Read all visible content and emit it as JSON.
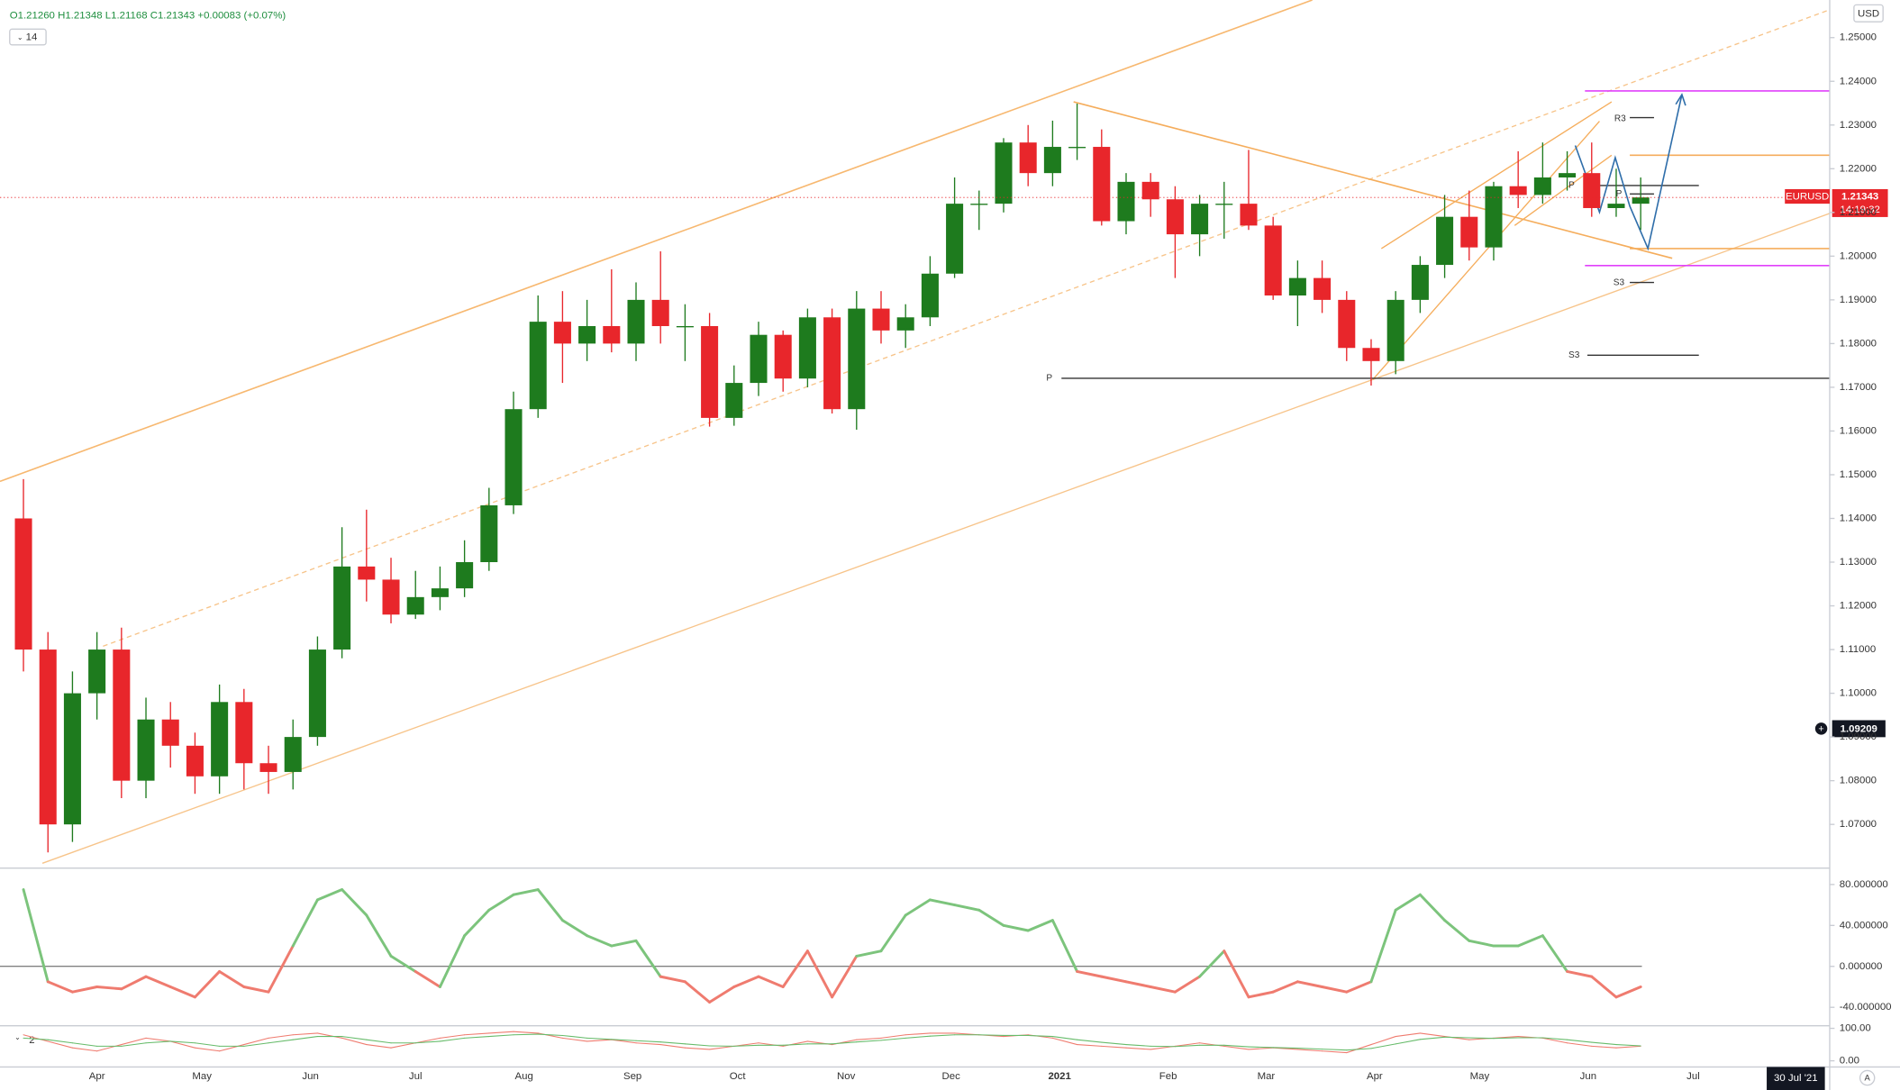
{
  "header": {
    "ohlc": "O1.21260 H1.21348 L1.21168 C1.21343 +0.00083 (+0.07%)",
    "interval": "14"
  },
  "ui": {
    "currency": "USD",
    "symbol": "EURUSD",
    "price_tag": "1.21343",
    "countdown": "14:19:32",
    "crosshair_price": "1.09209",
    "crosshair_date": "30 Jul '21",
    "pane_index": "2",
    "auto_scale": "A"
  },
  "chart_data": [
    {
      "type": "candlestick",
      "x": [
        -21,
        -14,
        -7,
        0,
        7,
        14,
        21,
        28,
        35,
        42,
        49,
        56,
        63,
        70,
        77,
        84,
        91,
        98,
        105,
        112,
        119,
        126,
        133,
        140,
        147,
        154,
        161,
        168,
        175,
        182,
        189,
        196,
        203,
        210,
        217,
        224,
        231,
        238,
        245,
        252,
        259,
        266,
        273,
        280,
        287,
        294,
        301,
        308,
        315,
        322,
        329,
        336,
        343,
        350,
        357,
        364,
        371,
        378,
        385,
        392,
        399,
        406,
        413,
        420,
        427,
        434,
        441
      ],
      "open": [
        1.14,
        1.11,
        1.07,
        1.1,
        1.11,
        1.08,
        1.094,
        1.088,
        1.081,
        1.098,
        1.084,
        1.082,
        1.09,
        1.11,
        1.129,
        1.126,
        1.118,
        1.122,
        1.124,
        1.13,
        1.143,
        1.165,
        1.185,
        1.18,
        1.184,
        1.18,
        1.19,
        1.184,
        1.184,
        1.163,
        1.171,
        1.182,
        1.172,
        1.186,
        1.165,
        1.188,
        1.183,
        1.186,
        1.196,
        1.212,
        1.212,
        1.226,
        1.219,
        1.225,
        1.225,
        1.208,
        1.217,
        1.213,
        1.205,
        1.212,
        1.212,
        1.207,
        1.191,
        1.195,
        1.19,
        1.179,
        1.176,
        1.19,
        1.198,
        1.209,
        1.202,
        1.216,
        1.214,
        1.218,
        1.219,
        1.211,
        1.212
      ],
      "high": [
        1.149,
        1.114,
        1.105,
        1.114,
        1.115,
        1.099,
        1.098,
        1.091,
        1.102,
        1.101,
        1.088,
        1.094,
        1.113,
        1.138,
        1.142,
        1.131,
        1.128,
        1.129,
        1.135,
        1.147,
        1.169,
        1.191,
        1.192,
        1.19,
        1.197,
        1.194,
        1.2011,
        1.189,
        1.187,
        1.175,
        1.185,
        1.183,
        1.188,
        1.188,
        1.192,
        1.192,
        1.189,
        1.2,
        1.218,
        1.215,
        1.227,
        1.23,
        1.231,
        1.2349,
        1.229,
        1.219,
        1.219,
        1.216,
        1.214,
        1.217,
        1.2243,
        1.209,
        1.199,
        1.199,
        1.192,
        1.181,
        1.192,
        1.2,
        1.214,
        1.215,
        1.217,
        1.224,
        1.226,
        1.224,
        1.226,
        1.22,
        1.218
      ],
      "low": [
        1.105,
        1.0636,
        1.066,
        1.094,
        1.076,
        1.076,
        1.083,
        1.077,
        1.077,
        1.078,
        1.077,
        1.078,
        1.088,
        1.108,
        1.121,
        1.116,
        1.117,
        1.119,
        1.122,
        1.128,
        1.141,
        1.163,
        1.171,
        1.176,
        1.178,
        1.176,
        1.18,
        1.176,
        1.161,
        1.1612,
        1.168,
        1.169,
        1.17,
        1.164,
        1.1603,
        1.18,
        1.179,
        1.184,
        1.195,
        1.206,
        1.21,
        1.216,
        1.216,
        1.222,
        1.207,
        1.205,
        1.209,
        1.195,
        1.2,
        1.204,
        1.206,
        1.19,
        1.184,
        1.187,
        1.176,
        1.1704,
        1.173,
        1.187,
        1.195,
        1.199,
        1.199,
        1.211,
        1.212,
        1.215,
        1.209,
        1.209,
        1.206
      ],
      "close": [
        1.11,
        1.07,
        1.1,
        1.11,
        1.08,
        1.094,
        1.088,
        1.081,
        1.098,
        1.084,
        1.082,
        1.09,
        1.11,
        1.129,
        1.126,
        1.118,
        1.122,
        1.124,
        1.13,
        1.143,
        1.165,
        1.185,
        1.18,
        1.184,
        1.18,
        1.19,
        1.184,
        1.184,
        1.163,
        1.171,
        1.182,
        1.172,
        1.186,
        1.165,
        1.188,
        1.183,
        1.186,
        1.196,
        1.212,
        1.212,
        1.226,
        1.219,
        1.225,
        1.225,
        1.208,
        1.217,
        1.213,
        1.205,
        1.212,
        1.212,
        1.207,
        1.191,
        1.195,
        1.19,
        1.179,
        1.176,
        1.19,
        1.198,
        1.209,
        1.202,
        1.216,
        1.214,
        1.218,
        1.219,
        1.211,
        1.212,
        1.21343
      ],
      "colors": {
        "up": "#1e7b1e",
        "down": "#e8262b",
        "last": "#e8262b"
      },
      "xlim": [
        -27.7,
        495
      ],
      "ylim": [
        1.06,
        1.2586
      ],
      "xticks": [
        {
          "value": 0,
          "label": "Apr"
        },
        {
          "value": 30,
          "label": "May"
        },
        {
          "value": 61,
          "label": "Jun"
        },
        {
          "value": 91,
          "label": "Jul"
        },
        {
          "value": 122,
          "label": "Aug"
        },
        {
          "value": 153,
          "label": "Sep"
        },
        {
          "value": 183,
          "label": "Oct"
        },
        {
          "value": 214,
          "label": "Nov"
        },
        {
          "value": 244,
          "label": "Dec"
        },
        {
          "value": 275,
          "label": "2021"
        },
        {
          "value": 306,
          "label": "Feb"
        },
        {
          "value": 334,
          "label": "Mar"
        },
        {
          "value": 365,
          "label": "Apr"
        },
        {
          "value": 395,
          "label": "May"
        },
        {
          "value": 426,
          "label": "Jun"
        },
        {
          "value": 456,
          "label": "Jul"
        }
      ],
      "yticks": [
        {
          "value": 1.07,
          "label": "1.07000"
        },
        {
          "value": 1.08,
          "label": "1.08000"
        },
        {
          "value": 1.09,
          "label": "1.09000"
        },
        {
          "value": 1.1,
          "label": "1.10000"
        },
        {
          "value": 1.11,
          "label": "1.11000"
        },
        {
          "value": 1.12,
          "label": "1.12000"
        },
        {
          "value": 1.13,
          "label": "1.13000"
        },
        {
          "value": 1.14,
          "label": "1.14000"
        },
        {
          "value": 1.15,
          "label": "1.15000"
        },
        {
          "value": 1.16,
          "label": "1.16000"
        },
        {
          "value": 1.17,
          "label": "1.17000"
        },
        {
          "value": 1.18,
          "label": "1.18000"
        },
        {
          "value": 1.19,
          "label": "1.19000"
        },
        {
          "value": 1.2,
          "label": "1.20000"
        },
        {
          "value": 1.21,
          "label": "1.21000"
        },
        {
          "value": 1.22,
          "label": "1.22000"
        },
        {
          "value": 1.23,
          "label": "1.23000"
        },
        {
          "value": 1.24,
          "label": "1.24000"
        },
        {
          "value": 1.25,
          "label": "1.25000"
        }
      ],
      "grid": false,
      "annotations": [
        "R3",
        "P",
        "P",
        "S3",
        "S3",
        "P"
      ]
    },
    {
      "type": "line",
      "values": [
        75,
        -15,
        -25,
        -20,
        -22,
        -10,
        -20,
        -30,
        -5,
        -20,
        -25,
        20,
        65,
        75,
        50,
        10,
        -5,
        -20,
        30,
        55,
        70,
        75,
        45,
        30,
        20,
        25,
        -10,
        -15,
        -35,
        -20,
        -10,
        -20,
        15,
        -30,
        10,
        15,
        50,
        65,
        60,
        55,
        40,
        35,
        45,
        -5,
        -10,
        -15,
        -20,
        -25,
        -10,
        15,
        -30,
        -25,
        -15,
        -20,
        -25,
        -15,
        55,
        70,
        45,
        25,
        20,
        20,
        30,
        -5,
        -10,
        -30,
        -20
      ],
      "colors": {
        "positive": "#7cc47c",
        "negative": "#ef7b6f"
      },
      "ylim": [
        -58,
        96
      ],
      "zero_line": 0,
      "yticks": [
        {
          "value": 80,
          "label": "80.000000"
        },
        {
          "value": 40,
          "label": "40.000000"
        },
        {
          "value": 0,
          "label": "0.000000"
        },
        {
          "value": -40,
          "label": "-40.000000"
        }
      ]
    },
    {
      "type": "line",
      "series": [
        {
          "color": "#ef7b6f",
          "values": [
            80,
            60,
            40,
            30,
            50,
            70,
            60,
            40,
            30,
            50,
            70,
            80,
            85,
            70,
            50,
            40,
            55,
            70,
            80,
            85,
            90,
            85,
            70,
            60,
            65,
            55,
            50,
            40,
            35,
            45,
            55,
            45,
            60,
            50,
            65,
            70,
            80,
            85,
            85,
            80,
            75,
            80,
            70,
            50,
            45,
            40,
            35,
            45,
            55,
            45,
            35,
            40,
            35,
            30,
            25,
            50,
            75,
            85,
            75,
            65,
            70,
            75,
            70,
            55,
            45,
            40,
            45
          ]
        },
        {
          "color": "#66bb6a",
          "values": [
            70,
            65,
            55,
            45,
            45,
            55,
            60,
            55,
            45,
            45,
            55,
            65,
            75,
            75,
            65,
            55,
            55,
            60,
            70,
            75,
            80,
            82,
            78,
            70,
            66,
            62,
            58,
            52,
            46,
            45,
            48,
            48,
            52,
            52,
            58,
            63,
            70,
            76,
            80,
            80,
            78,
            78,
            75,
            65,
            57,
            50,
            45,
            44,
            48,
            48,
            43,
            41,
            39,
            36,
            33,
            38,
            52,
            66,
            73,
            71,
            69,
            71,
            71,
            65,
            57,
            50,
            46
          ]
        }
      ],
      "ylim": [
        -19,
        108
      ],
      "yticks": [
        {
          "value": 100,
          "label": "100.00"
        },
        {
          "value": 0,
          "label": "0.00"
        }
      ]
    }
  ]
}
